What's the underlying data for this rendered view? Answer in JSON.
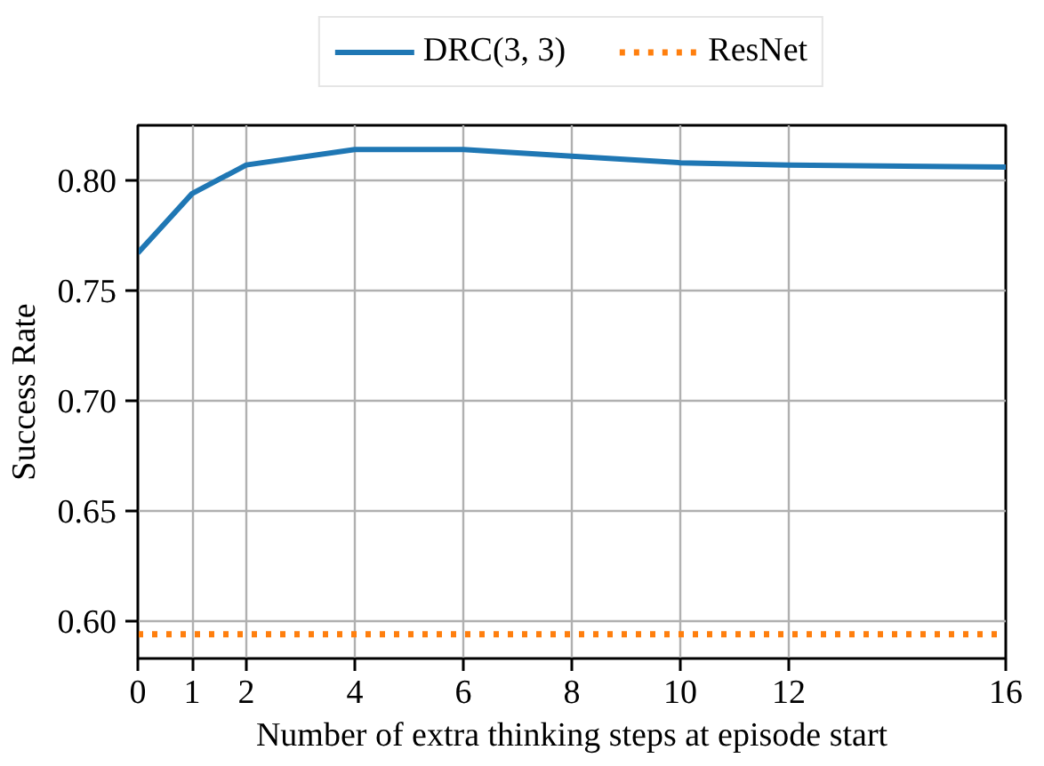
{
  "chart_data": {
    "type": "line",
    "xlabel": "Number of extra thinking steps at episode start",
    "ylabel": "Success Rate",
    "x": [
      0,
      1,
      2,
      4,
      6,
      8,
      10,
      12,
      16
    ],
    "series": [
      {
        "name": "DRC(3, 3)",
        "color": "#1f77b4",
        "values": [
          0.767,
          0.794,
          0.807,
          0.814,
          0.814,
          0.811,
          0.808,
          0.807,
          0.806
        ],
        "line_style": "solid"
      },
      {
        "name": "ResNet",
        "color": "#ff7f0e",
        "values": [
          0.594,
          0.594,
          0.594,
          0.594,
          0.594,
          0.594,
          0.594,
          0.594,
          0.594
        ],
        "line_style": "dotted"
      }
    ],
    "xlim": [
      0,
      16
    ],
    "ylim": [
      0.583,
      0.825
    ],
    "xticks": [
      0,
      1,
      2,
      4,
      6,
      8,
      10,
      12,
      16
    ],
    "yticks": [
      {
        "value": 0.6,
        "label": "0.60"
      },
      0.65,
      {
        "value": 0.7,
        "label": "0.70"
      },
      0.75,
      {
        "value": 0.8,
        "label": "0.80"
      }
    ],
    "grid": true,
    "legend": "top",
    "marker": "none"
  }
}
